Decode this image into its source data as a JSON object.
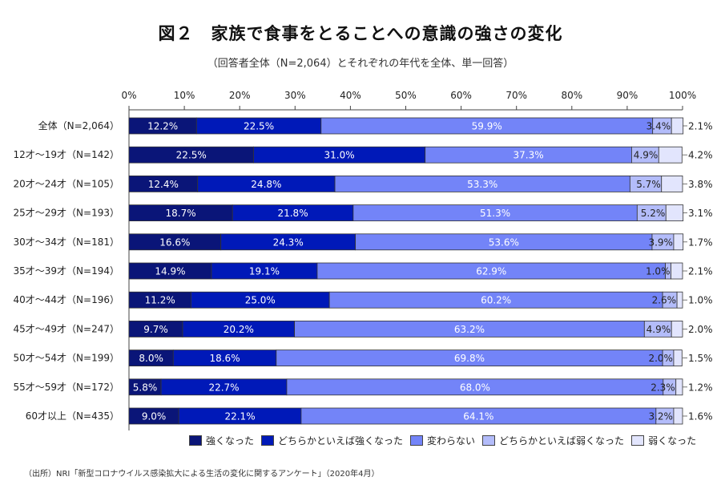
{
  "title": "図２　家族で食事をとることへの意識の強さの変化",
  "subtitle": "（回答者全体（N=2,064）とそれぞれの年代を全体、単一回答）",
  "source": "（出所）NRI「新型コロナウイルス感染拡大による生活の変化に関するアンケート」（2020年4月）",
  "chart_data": {
    "type": "bar",
    "orientation": "horizontal",
    "stacked": "percent",
    "title": "図２　家族で食事をとることへの意識の強さの変化",
    "subtitle": "（回答者全体（N=2,064）とそれぞれの年代を全体、単一回答）",
    "xlabel": "",
    "ylabel": "",
    "xlim": [
      0,
      100
    ],
    "x_ticks": [
      "0%",
      "10%",
      "20%",
      "30%",
      "40%",
      "50%",
      "60%",
      "70%",
      "80%",
      "90%",
      "100%"
    ],
    "grid": false,
    "legend_position": "bottom",
    "categories": [
      "全体（N=2,064）",
      "12才～19才（N=142）",
      "20才～24才（N=105）",
      "25才～29才（N=193）",
      "30才～34才（N=181）",
      "35才～39才（N=194）",
      "40才～44才（N=196）",
      "45才～49才（N=247）",
      "50才～54才（N=199）",
      "55才～59才（N=172）",
      "60才以上（N=435）"
    ],
    "series": [
      {
        "name": "強くなった",
        "color": "#0a1578",
        "values": [
          12.2,
          22.5,
          12.4,
          18.7,
          16.6,
          14.9,
          11.2,
          9.7,
          8.0,
          5.8,
          9.0
        ]
      },
      {
        "name": "どちらかといえば強くなった",
        "color": "#0019b8",
        "values": [
          22.5,
          31.0,
          24.8,
          21.8,
          24.3,
          19.1,
          25.0,
          20.2,
          18.6,
          22.7,
          22.1
        ]
      },
      {
        "name": "変わらない",
        "color": "#7384f8",
        "values": [
          59.9,
          37.3,
          53.3,
          51.3,
          53.6,
          62.9,
          60.2,
          63.2,
          69.8,
          68.0,
          64.1
        ]
      },
      {
        "name": "どちらかといえば弱くなった",
        "color": "#b3bcfa",
        "values": [
          3.4,
          4.9,
          5.7,
          5.2,
          3.9,
          1.0,
          2.6,
          4.9,
          2.0,
          2.3,
          3.2
        ]
      },
      {
        "name": "弱くなった",
        "color": "#e2e5fd",
        "values": [
          2.1,
          4.2,
          3.8,
          3.1,
          1.7,
          2.1,
          1.0,
          2.0,
          1.5,
          1.2,
          1.6
        ]
      }
    ]
  }
}
